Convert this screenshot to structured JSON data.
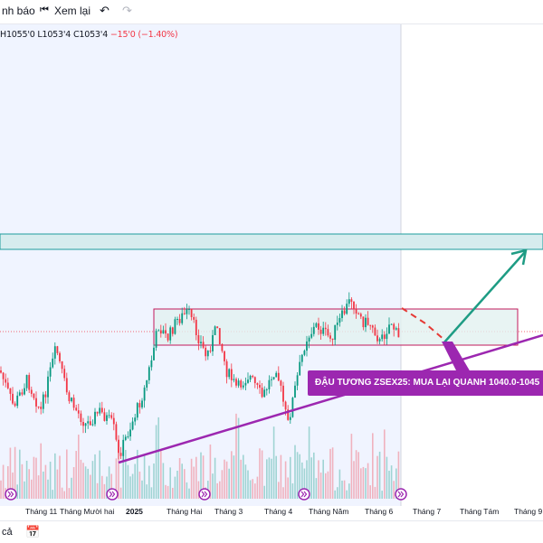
{
  "toolbar": {
    "alert_label": "nh báo",
    "replay_label": "Xem lại",
    "replay_icon": "rewind-icon",
    "undo_icon": "undo-icon",
    "redo_icon": "redo-icon"
  },
  "ohlc": {
    "high": "H1055'0",
    "low": "L1053'4",
    "close": "C1053'4",
    "change": "−15'0 (−1.40%)"
  },
  "callout": {
    "text": "ĐẬU TƯƠNG ZSEX25: MUA LẠI QUANH 1040.0-1045"
  },
  "xaxis": {
    "labels": [
      "Tháng 11",
      "Tháng Mười hai",
      "2025",
      "Tháng Hai",
      "Tháng 3",
      "Tháng 4",
      "Tháng Năm",
      "Tháng 6",
      "Tháng 7",
      "Tháng Tám",
      "Tháng 9"
    ]
  },
  "bottombar": {
    "range_text": "cả",
    "calendar_icon": "calendar-icon"
  },
  "colors": {
    "up": "#089981",
    "down": "#f23645",
    "trendline": "#9c27b0",
    "zone_fill": "#d6ecee",
    "arrow": "#1e9c84",
    "selection_bg": "#f0f4ff"
  }
}
